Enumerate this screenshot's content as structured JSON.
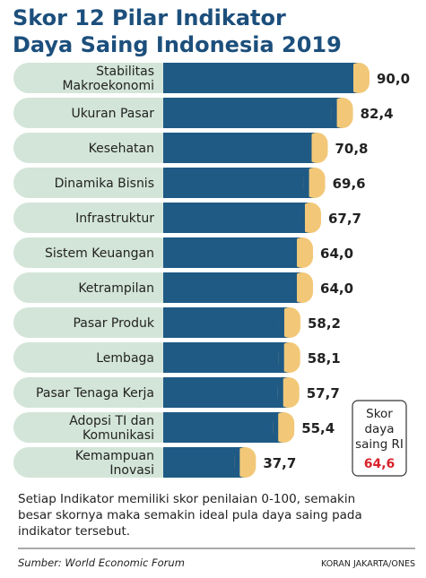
{
  "chart_data": {
    "type": "bar",
    "orientation": "horizontal",
    "title_lines": [
      "Skor 12 Pilar Indikator",
      "Daya Saing Indonesia 2019"
    ],
    "categories": [
      [
        "Stabilitas",
        "Makroekonomi"
      ],
      [
        "Ukuran Pasar"
      ],
      [
        "Kesehatan"
      ],
      [
        "Dinamika Bisnis"
      ],
      [
        "Infrastruktur"
      ],
      [
        "Sistem Keuangan"
      ],
      [
        "Ketrampilan"
      ],
      [
        "Pasar Produk"
      ],
      [
        "Lembaga"
      ],
      [
        "Pasar Tenaga Kerja"
      ],
      [
        "Adopsi TI dan",
        "Komunikasi"
      ],
      [
        "Kemampuan",
        "Inovasi"
      ]
    ],
    "values": [
      90.0,
      82.4,
      70.8,
      69.6,
      67.7,
      64.0,
      64.0,
      58.2,
      58.1,
      57.7,
      55.4,
      37.7
    ],
    "value_labels": [
      "90,0",
      "82,4",
      "70,8",
      "69,6",
      "67,7",
      "64,0",
      "64,0",
      "58,2",
      "58,1",
      "57,7",
      "55,4",
      "37,7"
    ],
    "xlim": [
      0,
      100
    ],
    "legend": "none",
    "grid": false,
    "annotation": {
      "lines": [
        "Skor",
        "daya",
        "saing RI"
      ],
      "value": "64,6"
    },
    "note_lines": [
      "Setiap Indikator memiliki skor penilaian 0-100, semakin",
      "besar skornya maka semakin ideal pula daya saing pada",
      "indikator tersebut."
    ],
    "source": "Sumber: World Economic Forum",
    "credit": "KORAN JAKARTA/ONES"
  },
  "colors": {
    "title": "#1c4f7c",
    "bar": "#1f5a85",
    "bar_cap": "#f2c878",
    "row_band": "#d3e5d8",
    "annotation_value": "#d9222a",
    "annotation_border": "#333333"
  }
}
